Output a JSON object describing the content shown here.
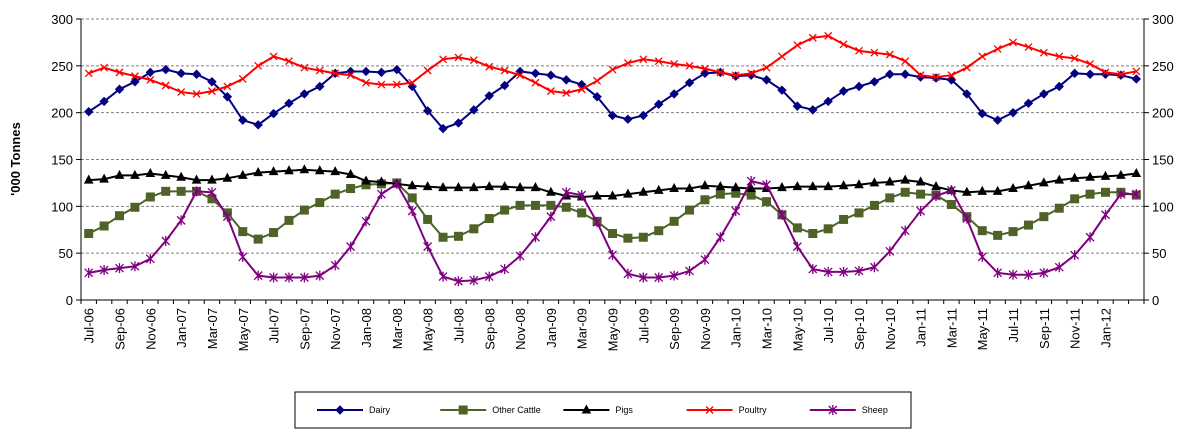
{
  "chart_data": {
    "type": "line",
    "title": "",
    "xlabel": "",
    "ylabel": "'000 Tonnes",
    "ylim": [
      0,
      300
    ],
    "yticks": [
      0,
      50,
      100,
      150,
      200,
      250,
      300
    ],
    "ytick_labels": [
      "0",
      "50",
      "100",
      "150",
      "200",
      "250",
      "300"
    ],
    "secondary_y": true,
    "grid": "horizontal-dashed",
    "legend_position": "bottom",
    "x": [
      "Jul-06",
      "Aug-06",
      "Sep-06",
      "Oct-06",
      "Nov-06",
      "Dec-06",
      "Jan-07",
      "Feb-07",
      "Mar-07",
      "Apr-07",
      "May-07",
      "Jun-07",
      "Jul-07",
      "Aug-07",
      "Sep-07",
      "Oct-07",
      "Nov-07",
      "Dec-07",
      "Jan-08",
      "Feb-08",
      "Mar-08",
      "Apr-08",
      "May-08",
      "Jun-08",
      "Jul-08",
      "Aug-08",
      "Sep-08",
      "Oct-08",
      "Nov-08",
      "Dec-08",
      "Jan-09",
      "Feb-09",
      "Mar-09",
      "Apr-09",
      "May-09",
      "Jun-09",
      "Jul-09",
      "Aug-09",
      "Sep-09",
      "Oct-09",
      "Nov-09",
      "Dec-09",
      "Jan-10",
      "Feb-10",
      "Mar-10",
      "Apr-10",
      "May-10",
      "Jun-10",
      "Jul-10",
      "Aug-10",
      "Sep-10",
      "Oct-10",
      "Nov-10",
      "Dec-10",
      "Jan-11",
      "Feb-11",
      "Mar-11",
      "Apr-11",
      "May-11",
      "Jun-11",
      "Jul-11",
      "Aug-11",
      "Sep-11",
      "Oct-11",
      "Nov-11",
      "Dec-11",
      "Jan-12",
      "Feb-12",
      "Mar-12"
    ],
    "x_tick_labels": [
      "Jul-06",
      "Sep-06",
      "Nov-06",
      "Jan-07",
      "Mar-07",
      "May-07",
      "Jul-07",
      "Sep-07",
      "Nov-07",
      "Jan-08",
      "Mar-08",
      "May-08",
      "Jul-08",
      "Sep-08",
      "Nov-08",
      "Jan-09",
      "Mar-09",
      "May-09",
      "Jul-09",
      "Sep-09",
      "Nov-09",
      "Jan-10",
      "Mar-10",
      "May-10",
      "Jul-10",
      "Sep-10",
      "Nov-10",
      "Jan-11",
      "Mar-11",
      "May-11",
      "Jul-11",
      "Sep-11",
      "Nov-11",
      "Jan-12"
    ],
    "series": [
      {
        "name": "Dairy",
        "color": "#000080",
        "marker": "diamond",
        "values": [
          201,
          212,
          225,
          233,
          243,
          246,
          242,
          241,
          233,
          217,
          192,
          187,
          199,
          210,
          220,
          228,
          242,
          244,
          244,
          243,
          246,
          228,
          202,
          183,
          189,
          203,
          218,
          229,
          244,
          242,
          240,
          235,
          230,
          217,
          197,
          193,
          197,
          209,
          220,
          232,
          242,
          243,
          239,
          240,
          235,
          224,
          207,
          203,
          212,
          223,
          228,
          233,
          241,
          241,
          238,
          237,
          235,
          220,
          199,
          192,
          200,
          210,
          220,
          228,
          242,
          241,
          241,
          240,
          236
        ]
      },
      {
        "name": "Other Cattle",
        "color": "#4F6228",
        "marker": "square",
        "values": [
          71,
          79,
          90,
          99,
          110,
          116,
          116,
          116,
          108,
          93,
          73,
          65,
          72,
          85,
          96,
          104,
          113,
          119,
          123,
          124,
          125,
          109,
          86,
          67,
          68,
          76,
          87,
          96,
          101,
          101,
          101,
          99,
          93,
          84,
          71,
          66,
          67,
          74,
          84,
          96,
          107,
          113,
          114,
          112,
          105,
          91,
          77,
          71,
          76,
          86,
          93,
          101,
          109,
          115,
          113,
          112,
          102,
          89,
          74,
          69,
          73,
          80,
          89,
          98,
          108,
          113,
          115,
          115,
          112
        ]
      },
      {
        "name": "Pigs",
        "color": "#000000",
        "marker": "triangle",
        "values": [
          128,
          129,
          133,
          133,
          135,
          133,
          131,
          128,
          128,
          130,
          133,
          136,
          137,
          138,
          139,
          138,
          137,
          134,
          127,
          126,
          124,
          122,
          121,
          120,
          120,
          120,
          121,
          121,
          120,
          120,
          115,
          111,
          110,
          111,
          111,
          113,
          115,
          117,
          119,
          119,
          122,
          121,
          120,
          119,
          119,
          120,
          121,
          121,
          121,
          122,
          123,
          125,
          126,
          128,
          126,
          121,
          117,
          115,
          116,
          116,
          119,
          122,
          125,
          128,
          130,
          131,
          132,
          133,
          135
        ]
      },
      {
        "name": "Poultry",
        "color": "#FF0000",
        "marker": "x",
        "values": [
          242,
          248,
          243,
          239,
          235,
          229,
          222,
          220,
          223,
          228,
          236,
          250,
          260,
          255,
          248,
          245,
          242,
          240,
          232,
          230,
          230,
          232,
          245,
          257,
          259,
          256,
          249,
          245,
          240,
          232,
          223,
          221,
          225,
          234,
          246,
          253,
          257,
          255,
          252,
          250,
          247,
          243,
          240,
          242,
          248,
          260,
          272,
          280,
          282,
          273,
          266,
          264,
          262,
          255,
          240,
          238,
          240,
          248,
          260,
          268,
          275,
          270,
          264,
          260,
          258,
          252,
          243,
          241,
          244
        ]
      },
      {
        "name": "Sheep",
        "color": "#7F007F",
        "marker": "star",
        "values": [
          29,
          32,
          34,
          36,
          44,
          63,
          85,
          116,
          115,
          89,
          46,
          26,
          24,
          24,
          24,
          26,
          37,
          57,
          84,
          113,
          124,
          95,
          57,
          25,
          20,
          21,
          25,
          33,
          47,
          67,
          89,
          115,
          112,
          83,
          48,
          28,
          24,
          24,
          26,
          31,
          43,
          67,
          95,
          127,
          123,
          91,
          57,
          33,
          30,
          30,
          31,
          35,
          52,
          74,
          95,
          111,
          117,
          87,
          46,
          29,
          27,
          27,
          29,
          35,
          48,
          67,
          91,
          113,
          113
        ]
      }
    ]
  }
}
